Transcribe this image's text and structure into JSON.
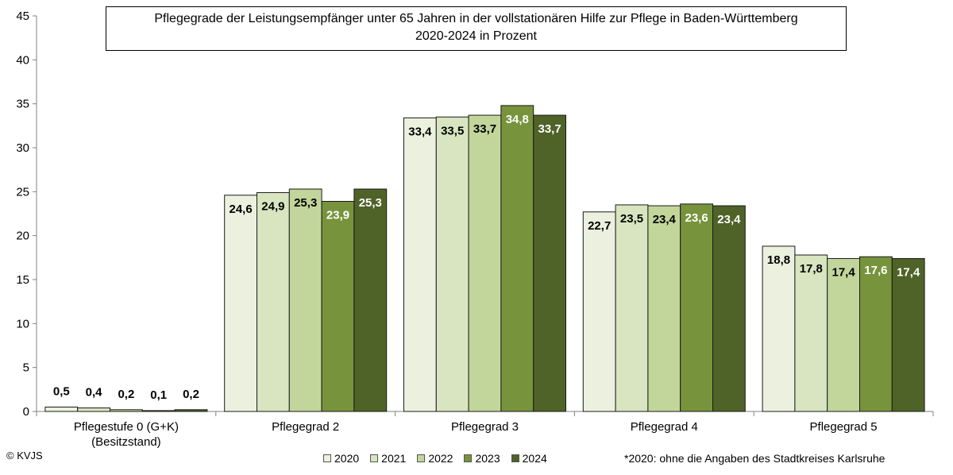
{
  "chart_data": {
    "type": "bar",
    "title": "Pflegegrade der Leistungsempfänger unter 65 Jahren in der vollstationären Hilfe zur Pflege in Baden-Württemberg",
    "subtitle": "2020-2024 in Prozent",
    "xlabel": "",
    "ylabel": "",
    "ylim": [
      0,
      45
    ],
    "yticks": [
      "0",
      "5",
      "10",
      "15",
      "20",
      "25",
      "30",
      "35",
      "40",
      "45"
    ],
    "grid": false,
    "legend_position": "bottom",
    "categories": [
      [
        "Pflegestufe 0 (G+K)",
        "(Besitzstand)"
      ],
      [
        "Pflegegrad 2"
      ],
      [
        "Pflegegrad 3"
      ],
      [
        "Pflegegrad 4"
      ],
      [
        "Pflegegrad 5"
      ]
    ],
    "series": [
      {
        "name": "2020",
        "color": "#ecf1df",
        "label_color": "#000000",
        "values": [
          0.5,
          24.6,
          33.4,
          22.7,
          18.8
        ],
        "labels": [
          "0,5",
          "24,6",
          "33,4",
          "22,7",
          "18,8"
        ]
      },
      {
        "name": "2021",
        "color": "#d8e5c0",
        "label_color": "#000000",
        "values": [
          0.4,
          24.9,
          33.5,
          23.5,
          17.8
        ],
        "labels": [
          "0,4",
          "24,9",
          "33,5",
          "23,5",
          "17,8"
        ]
      },
      {
        "name": "2022",
        "color": "#c2d69b",
        "label_color": "#000000",
        "values": [
          0.2,
          25.3,
          33.7,
          23.4,
          17.4
        ],
        "labels": [
          "0,2",
          "25,3",
          "33,7",
          "23,4",
          "17,4"
        ]
      },
      {
        "name": "2023",
        "color": "#77933c",
        "label_color": "#ffffff",
        "values": [
          0.1,
          23.9,
          34.8,
          23.6,
          17.6
        ],
        "labels": [
          "0,1",
          "23,9",
          "34,8",
          "23,6",
          "17,6"
        ]
      },
      {
        "name": "2024",
        "color": "#4f6228",
        "label_color": "#ffffff",
        "values": [
          0.2,
          25.3,
          33.7,
          23.4,
          17.4
        ],
        "labels": [
          "0,2",
          "25,3",
          "33,7",
          "23,4",
          "17,4"
        ]
      }
    ]
  },
  "footer": {
    "copyright": "© KVJS",
    "footnote": "*2020: ohne die Angaben des Stadtkreises Karlsruhe"
  }
}
